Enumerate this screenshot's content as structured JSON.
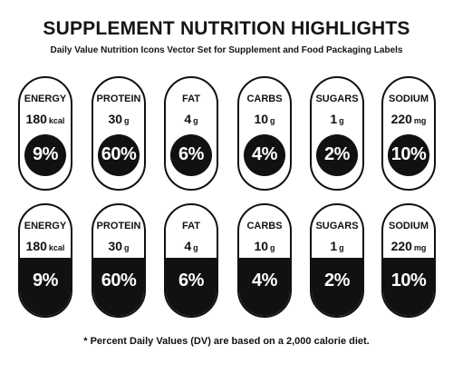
{
  "header": {
    "title": "SUPPLEMENT NUTRITION HIGHLIGHTS",
    "subtitle": "Daily Value Nutrition Icons Vector Set for Supplement and Food Packaging Labels"
  },
  "rows": [
    {
      "style": "circle",
      "items": [
        {
          "name": "ENERGY",
          "value": "180",
          "unit": "kcal",
          "percent": "9%"
        },
        {
          "name": "PROTEIN",
          "value": "30",
          "unit": "g",
          "percent": "60%"
        },
        {
          "name": "FAT",
          "value": "4",
          "unit": "g",
          "percent": "6%"
        },
        {
          "name": "CARBS",
          "value": "10",
          "unit": "g",
          "percent": "4%"
        },
        {
          "name": "SUGARS",
          "value": "1",
          "unit": "g",
          "percent": "2%"
        },
        {
          "name": "SODIUM",
          "value": "220",
          "unit": "mg",
          "percent": "10%"
        }
      ]
    },
    {
      "style": "half-fill",
      "items": [
        {
          "name": "ENERGY",
          "value": "180",
          "unit": "kcal",
          "percent": "9%"
        },
        {
          "name": "PROTEIN",
          "value": "30",
          "unit": "g",
          "percent": "60%"
        },
        {
          "name": "FAT",
          "value": "4",
          "unit": "g",
          "percent": "6%"
        },
        {
          "name": "CARBS",
          "value": "10",
          "unit": "g",
          "percent": "4%"
        },
        {
          "name": "SUGARS",
          "value": "1",
          "unit": "g",
          "percent": "2%"
        },
        {
          "name": "SODIUM",
          "value": "220",
          "unit": "mg",
          "percent": "10%"
        }
      ]
    }
  ],
  "footnote": "* Percent Daily Values (DV) are based on a 2,000 calorie diet.",
  "colors": {
    "ink": "#111111",
    "background": "#ffffff"
  }
}
